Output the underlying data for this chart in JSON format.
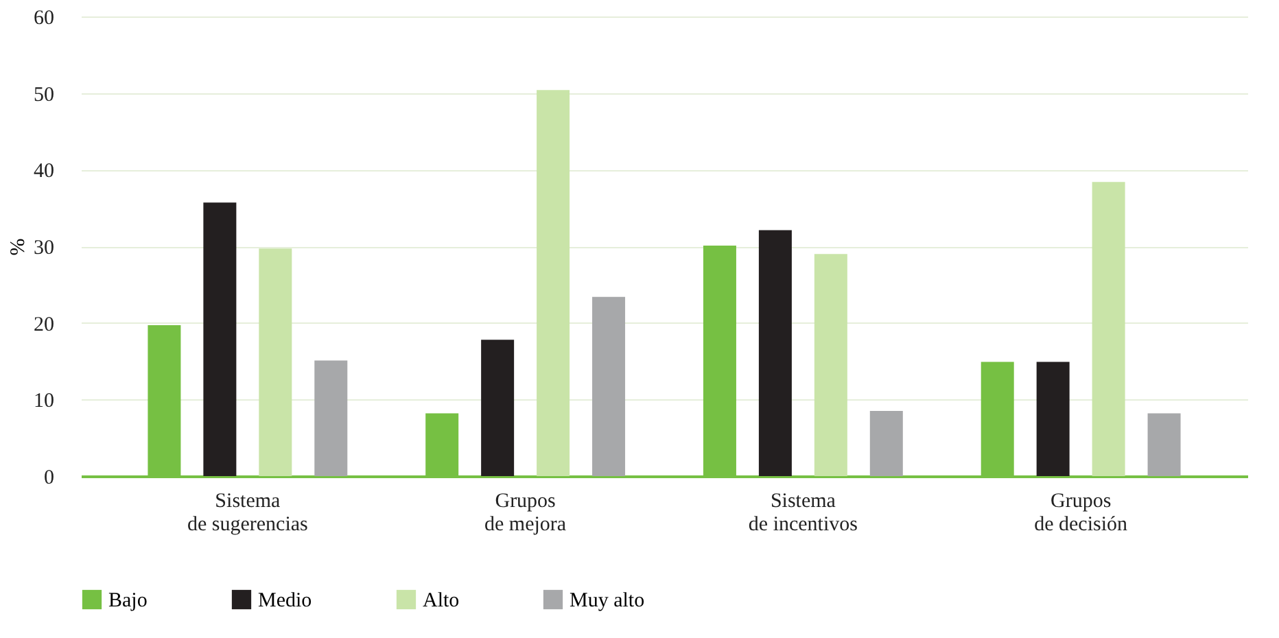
{
  "chart_data": {
    "type": "bar",
    "ylabel": "%",
    "categories": [
      "Sistema\nde sugerencias",
      "Grupos\nde mejora",
      "Sistema\nde incentivos",
      "Grupos\nde decisión"
    ],
    "series": [
      {
        "name": "Bajo",
        "color": "#76c043",
        "values": [
          19.7,
          8.2,
          30.1,
          14.9
        ]
      },
      {
        "name": "Medio",
        "color": "#231f20",
        "values": [
          35.7,
          17.8,
          32.1,
          14.9
        ]
      },
      {
        "name": "Alto",
        "color": "#c9e4a8",
        "values": [
          29.7,
          50.4,
          29.0,
          38.4
        ]
      },
      {
        "name": "Muy alto",
        "color": "#a7a8aa",
        "values": [
          15.1,
          23.4,
          8.5,
          8.2
        ]
      }
    ],
    "ylim": [
      0,
      60
    ],
    "yticks": [
      0,
      10,
      20,
      30,
      40,
      50,
      60
    ],
    "grid": "y",
    "legend": "bottom"
  }
}
